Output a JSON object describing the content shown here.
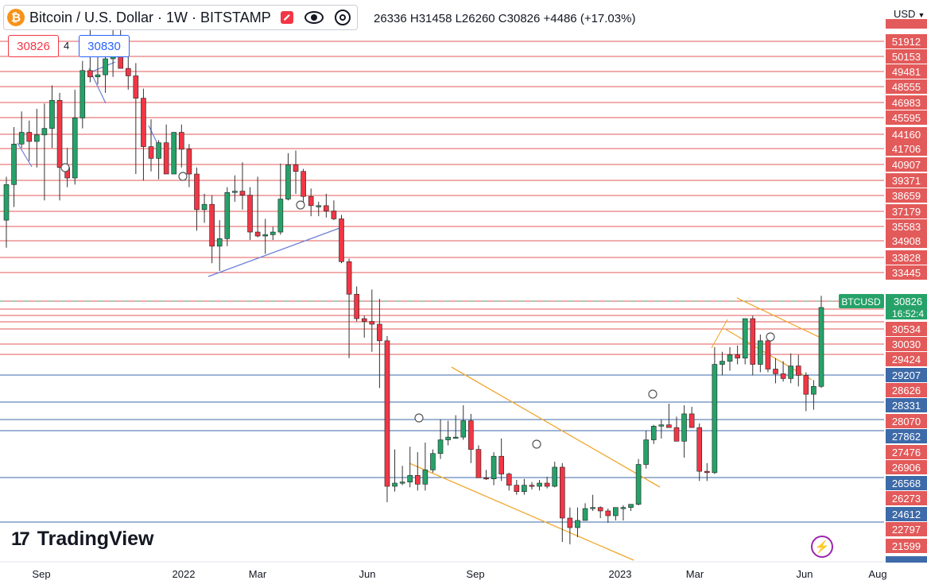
{
  "header": {
    "title": "Bitcoin / U.S. Dollar · 1W · BITSTAMP",
    "ohlc_text": "26336 H31458 L26260 C30826 +4486 (+17.03%)",
    "coin_symbol": "₿"
  },
  "trade": {
    "sell_price": "30826",
    "spread": "4",
    "buy_price": "30830"
  },
  "currency": "USD",
  "branding": {
    "logo_text": "TradingView",
    "logo_mark": "17"
  },
  "colors": {
    "up": "#26a269",
    "down": "#f23645",
    "support": "#3d6aa8",
    "resistance": "#e35a5a",
    "channel": "#f0a830",
    "trendline": "#6b7fd7",
    "price_tag": "#26a269"
  },
  "chart_data": {
    "type": "candlestick",
    "symbol": "BTCUSD",
    "interval": "1W",
    "ylim": [
      20000,
      53300
    ],
    "x_ticks": [
      "Sep",
      "2022",
      "Mar",
      "Jun",
      "Sep",
      "2023",
      "Mar",
      "Jun",
      "Aug"
    ],
    "candles_ohlc": [
      [
        36500,
        39800,
        34500,
        39200
      ],
      [
        39200,
        43600,
        37500,
        42300
      ],
      [
        42300,
        44800,
        42000,
        43200
      ],
      [
        43200,
        44100,
        41000,
        42500
      ],
      [
        42500,
        45000,
        40500,
        43000
      ],
      [
        43000,
        45500,
        38000,
        43500
      ],
      [
        43500,
        47200,
        42000,
        45800
      ],
      [
        45800,
        46500,
        38000,
        40500
      ],
      [
        40500,
        42000,
        39000,
        39700
      ],
      [
        39700,
        46800,
        39200,
        44300
      ],
      [
        44300,
        49500,
        43500,
        48600
      ],
      [
        48600,
        53000,
        47500,
        48000
      ],
      [
        48000,
        50300,
        47300,
        48200
      ],
      [
        48200,
        51200,
        46500,
        49700
      ],
      [
        49700,
        53300,
        48000,
        51900
      ],
      [
        51900,
        53000,
        49500,
        48800
      ],
      [
        48800,
        51000,
        46800,
        48100
      ],
      [
        48100,
        49300,
        40000,
        46000
      ],
      [
        46000,
        46900,
        39500,
        42100
      ],
      [
        42100,
        44200,
        40200,
        41200
      ],
      [
        41200,
        42600,
        39600,
        42400
      ],
      [
        42400,
        43800,
        40500,
        40000
      ],
      [
        40000,
        42600,
        40000,
        43200
      ],
      [
        43200,
        43800,
        40500,
        41900
      ],
      [
        41900,
        42300,
        39000,
        40000
      ],
      [
        40000,
        40500,
        35700,
        37300
      ],
      [
        37300,
        38500,
        36300,
        37700
      ],
      [
        37700,
        38400,
        33500,
        34600
      ],
      [
        34600,
        36500,
        33000,
        35100
      ],
      [
        35100,
        39000,
        34600,
        38600
      ],
      [
        38600,
        39900,
        37900,
        38700
      ],
      [
        38700,
        40900,
        37300,
        38400
      ],
      [
        38400,
        39000,
        35000,
        35600
      ],
      [
        35600,
        39800,
        35200,
        35300
      ],
      [
        35300,
        36600,
        34100,
        35400
      ],
      [
        35400,
        36000,
        35000,
        35600
      ],
      [
        35600,
        40800,
        35400,
        38100
      ],
      [
        38100,
        41600,
        38000,
        40700
      ],
      [
        40700,
        41800,
        38500,
        40200
      ],
      [
        40200,
        40400,
        37800,
        38300
      ],
      [
        38300,
        38900,
        36800,
        37600
      ],
      [
        37600,
        37900,
        36800,
        37600
      ],
      [
        37600,
        38500,
        36700,
        37200
      ],
      [
        37200,
        38000,
        36500,
        36600
      ],
      [
        36600,
        36900,
        33500,
        33600
      ],
      [
        33600,
        33800,
        28200,
        31500
      ],
      [
        31500,
        32000,
        30300,
        30400
      ],
      [
        30400,
        30500,
        29500,
        30300
      ],
      [
        30300,
        31800,
        28600,
        30200
      ],
      [
        30200,
        31200,
        26300,
        29300
      ],
      [
        29300,
        29600,
        17600,
        19100
      ],
      [
        19100,
        22000,
        18600,
        19400
      ],
      [
        19400,
        20800,
        19200,
        19500
      ],
      [
        19500,
        22200,
        19000,
        20100
      ],
      [
        20100,
        21800,
        18700,
        19300
      ],
      [
        19300,
        22500,
        18700,
        20500
      ],
      [
        20500,
        22000,
        20300,
        21700
      ],
      [
        21700,
        24200,
        21300,
        22700
      ],
      [
        22700,
        24100,
        22300,
        22900
      ],
      [
        22900,
        24500,
        22800,
        22900
      ],
      [
        22900,
        25200,
        22700,
        24100
      ],
      [
        24100,
        24600,
        21000,
        22000
      ],
      [
        22000,
        22300,
        19900,
        19900
      ],
      [
        19900,
        20500,
        19700,
        19800
      ],
      [
        19800,
        21800,
        19200,
        21500
      ],
      [
        21500,
        22800,
        19600,
        20200
      ],
      [
        20200,
        20300,
        18700,
        19200
      ],
      [
        19200,
        19700,
        18300,
        18600
      ],
      [
        18600,
        19800,
        18300,
        19200
      ],
      [
        19200,
        19500,
        18800,
        19100
      ],
      [
        19100,
        19700,
        18700,
        19400
      ],
      [
        19400,
        20000,
        18900,
        19100
      ],
      [
        19100,
        21100,
        19000,
        20700
      ],
      [
        20700,
        21000,
        15600,
        16600
      ],
      [
        16600,
        17100,
        15500,
        16200
      ],
      [
        16200,
        17100,
        15800,
        16500
      ],
      [
        16500,
        17500,
        16500,
        17000
      ],
      [
        17000,
        18300,
        16900,
        17100
      ],
      [
        17100,
        17200,
        16600,
        16900
      ],
      [
        16900,
        17000,
        16400,
        16700
      ],
      [
        16700,
        17000,
        16500,
        17100
      ],
      [
        17100,
        17300,
        16500,
        17100
      ],
      [
        17100,
        17400,
        16900,
        17400
      ],
      [
        17400,
        21300,
        17300,
        20900
      ],
      [
        20900,
        23400,
        20600,
        22700
      ],
      [
        22700,
        23800,
        22400,
        23700
      ],
      [
        23700,
        24200,
        22800,
        23800
      ],
      [
        23800,
        25300,
        23600,
        23600
      ],
      [
        23600,
        24400,
        22800,
        22600
      ],
      [
        22600,
        25200,
        21400,
        24600
      ],
      [
        24600,
        25100,
        23800,
        23600
      ],
      [
        23600,
        23900,
        19600,
        20400
      ],
      [
        20400,
        21000,
        19600,
        20300
      ],
      [
        20300,
        28900,
        20200,
        27800
      ],
      [
        27800,
        28600,
        27100,
        28000
      ],
      [
        28000,
        28900,
        27400,
        28400
      ],
      [
        28400,
        29000,
        27800,
        28200
      ],
      [
        28200,
        29900,
        27800,
        30400
      ],
      [
        30400,
        30500,
        27100,
        27800
      ],
      [
        27800,
        29700,
        27300,
        29300
      ],
      [
        29300,
        29700,
        27300,
        27500
      ],
      [
        27500,
        28200,
        26600,
        27200
      ],
      [
        27200,
        28000,
        26700,
        26900
      ],
      [
        26900,
        28500,
        26600,
        27700
      ],
      [
        27700,
        28400,
        26400,
        27100
      ],
      [
        27100,
        27300,
        24800,
        25900
      ],
      [
        25900,
        26800,
        24900,
        26400
      ],
      [
        26400,
        31400,
        26300,
        30800
      ]
    ],
    "y_axis_labels": [
      "51912",
      "50153",
      "49481",
      "48555",
      "46983",
      "45595",
      "44160",
      "41706",
      "40907",
      "39371",
      "38659",
      "37179",
      "35583",
      "34908",
      "33828",
      "33445",
      "30534",
      "30030",
      "29424",
      "29207",
      "28626",
      "28331",
      "28070",
      "27862",
      "27476",
      "26906",
      "26568",
      "26273",
      "24612",
      "22797",
      "21599"
    ],
    "resistance_levels": [
      51912,
      50153,
      49481,
      48555,
      46983,
      45595,
      44160,
      41706,
      40907,
      39371,
      38659,
      37179,
      35583,
      34908,
      33828,
      33445,
      31800,
      31550,
      31300,
      31050,
      30534,
      30030,
      29424
    ],
    "support_levels": [
      29207,
      28331,
      27862,
      26568,
      24612
    ],
    "current_price": {
      "label": "BTCUSD",
      "value": "30826",
      "countdown": "16:52:4"
    },
    "channels": [
      {
        "color": "orange",
        "from": [
          "2022-Aug",
          29700
        ],
        "to": [
          "2022-Dec",
          21500
        ]
      },
      {
        "color": "orange",
        "from": [
          "2022-Jul",
          20600
        ],
        "to": [
          "2023-Jan",
          12300
        ]
      },
      {
        "color": "orange",
        "from": [
          "2023-Apr",
          30900
        ],
        "to": [
          "2023-Jun",
          29100
        ]
      },
      {
        "color": "orange",
        "from": [
          "2023-Apr",
          29100
        ],
        "to": [
          "2023-Jun",
          27400
        ]
      }
    ],
    "trendlines": [
      {
        "color": "blue",
        "from": [
          "2022-Feb",
          33100
        ],
        "to": [
          "2022-May",
          36300
        ]
      }
    ]
  }
}
